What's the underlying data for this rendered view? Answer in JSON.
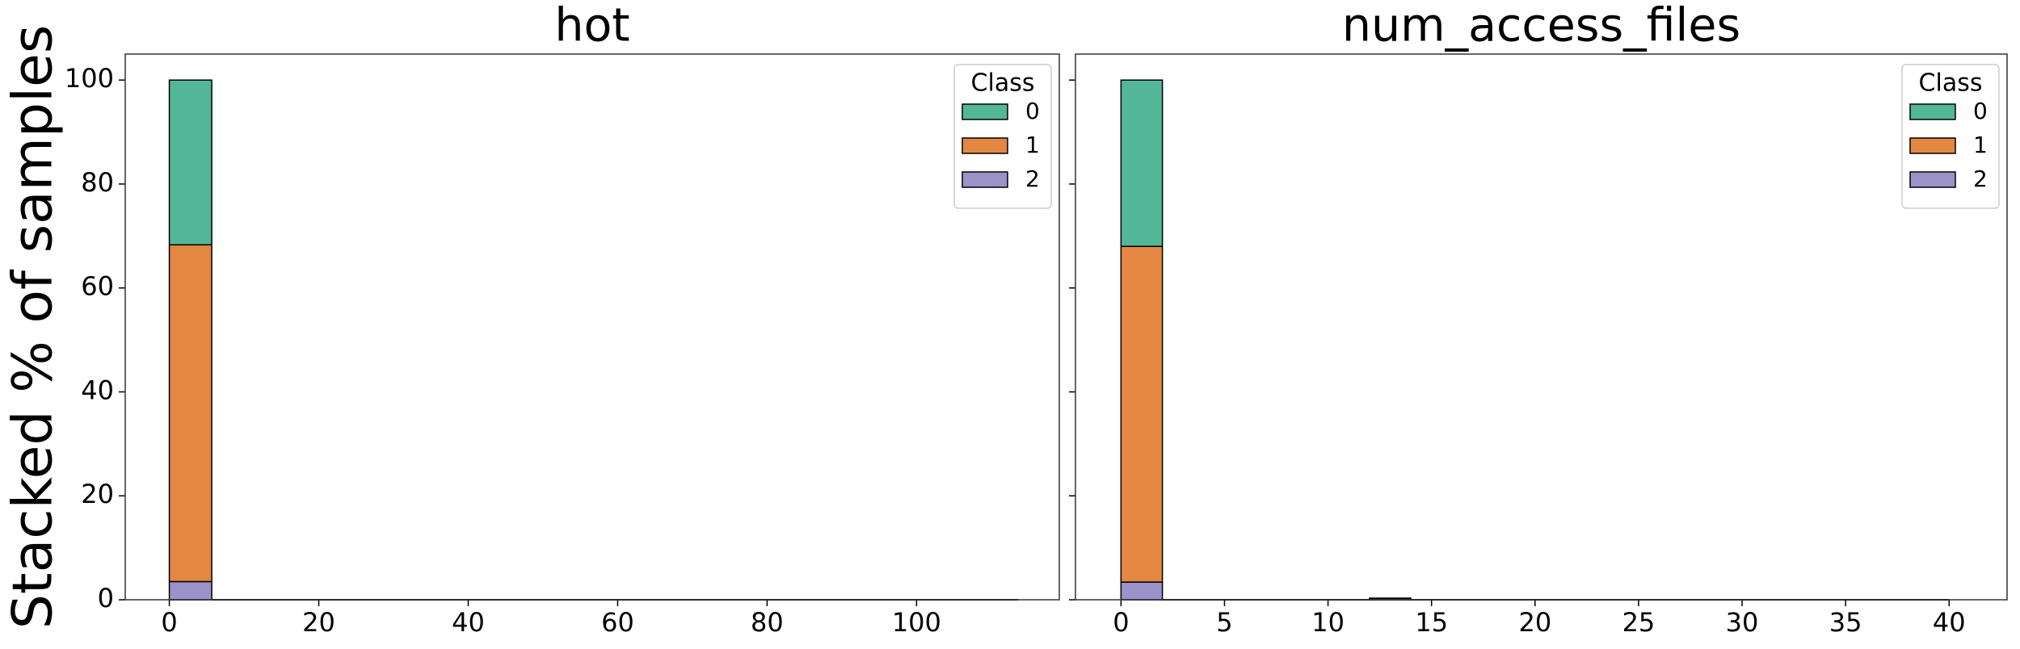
{
  "chart_data": [
    {
      "type": "histogram",
      "stacked": true,
      "title": "hot",
      "ylabel": "Stacked % of samples",
      "legend_title": "Class",
      "legend": "upper right",
      "bins": [
        0,
        5.68,
        11.36,
        17.04,
        22.72,
        28.4,
        34.08,
        39.76,
        45.44,
        51.12,
        56.8,
        62.48,
        68.16,
        73.84,
        79.52,
        85.2,
        90.88,
        96.56,
        102.24,
        107.92,
        113.6
      ],
      "series": [
        {
          "name": "0",
          "color": "#52b797",
          "values": [
            31.7,
            0,
            0,
            0,
            0,
            0,
            0,
            0,
            0,
            0,
            0,
            0,
            0,
            0,
            0,
            0,
            0,
            0,
            0,
            0
          ]
        },
        {
          "name": "1",
          "color": "#e38743",
          "values": [
            64.8,
            0,
            0,
            0,
            0,
            0,
            0,
            0,
            0,
            0,
            0,
            0,
            0,
            0,
            0,
            0,
            0,
            0,
            0,
            0
          ]
        },
        {
          "name": "2",
          "color": "#9a93c9",
          "values": [
            3.5,
            0,
            0,
            0,
            0,
            0,
            0,
            0,
            0,
            0,
            0,
            0,
            0,
            0,
            0,
            0,
            0,
            0,
            0,
            0
          ]
        }
      ],
      "xlim": [
        -5.9,
        119.1
      ],
      "xticks": [
        0,
        20,
        40,
        60,
        80,
        100
      ],
      "ylim": [
        0,
        105
      ],
      "yticks": [
        0,
        20,
        40,
        60,
        80,
        100
      ]
    },
    {
      "type": "histogram",
      "stacked": true,
      "title": "num_access_files",
      "legend_title": "Class",
      "legend": "upper right",
      "bins": [
        0,
        2,
        4,
        6,
        8,
        10,
        12,
        14,
        16,
        18,
        20,
        22,
        24,
        26,
        28,
        30,
        32,
        34,
        36,
        38,
        40
      ],
      "series": [
        {
          "name": "0",
          "color": "#52b797",
          "values": [
            32,
            0,
            0,
            0,
            0,
            0,
            0,
            0,
            0,
            0,
            0,
            0,
            0,
            0,
            0,
            0,
            0,
            0,
            0,
            0
          ]
        },
        {
          "name": "1",
          "color": "#e38743",
          "values": [
            64.6,
            0,
            0,
            0,
            0,
            0,
            0.3,
            0,
            0,
            0,
            0,
            0,
            0,
            0,
            0,
            0,
            0,
            0,
            0,
            0
          ]
        },
        {
          "name": "2",
          "color": "#9a93c9",
          "values": [
            3.4,
            0,
            0,
            0,
            0,
            0,
            0,
            0,
            0,
            0,
            0,
            0,
            0,
            0,
            0,
            0,
            0,
            0,
            0,
            0
          ]
        }
      ],
      "xlim": [
        -2.2,
        42.8
      ],
      "xticks": [
        0,
        5,
        10,
        15,
        20,
        25,
        30,
        35,
        40
      ],
      "ylim": [
        0,
        105
      ]
    }
  ]
}
